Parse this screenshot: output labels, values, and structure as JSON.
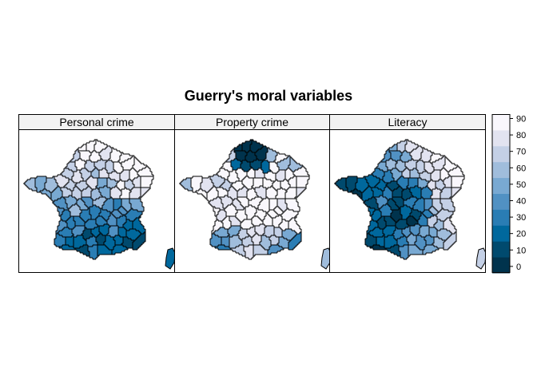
{
  "title": "Guerry's moral variables",
  "panels": [
    {
      "label": "Personal crime",
      "pattern": "personal"
    },
    {
      "label": "Property crime",
      "pattern": "property"
    },
    {
      "label": "Literacy",
      "pattern": "literacy"
    }
  ],
  "legend": {
    "ticks": [
      "90",
      "80",
      "70",
      "60",
      "50",
      "40",
      "30",
      "20",
      "10",
      "0"
    ],
    "colors": [
      "#00334d",
      "#004a6e",
      "#00689d",
      "#2a7db4",
      "#5191c3",
      "#79a9d2",
      "#a0bddc",
      "#c4d0e6",
      "#e2e3f0",
      "#f9f7fc"
    ]
  }
}
